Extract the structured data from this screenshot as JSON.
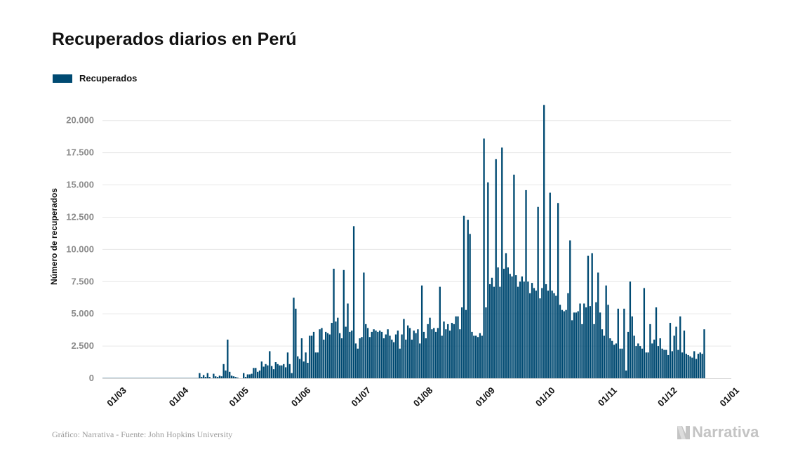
{
  "title": "Recuperados diarios en Perú",
  "footer": "Gráfico: Narrativa - Fuente: John Hopkins University",
  "brand": {
    "name": "Narrativa",
    "icon": "narrativa-logo-icon"
  },
  "colors": {
    "bar": "#004a72",
    "grid": "#e6e6e6",
    "tick_text": "#8a8a8a",
    "label": "#111111",
    "brand": "#c4c4c4"
  },
  "chart_data": {
    "type": "bar",
    "title": "Recuperados diarios en Perú",
    "xlabel": "",
    "ylabel": "Número de recuperados",
    "ylim": [
      0,
      22000
    ],
    "yticks": [
      0,
      2500,
      5000,
      7500,
      10000,
      12500,
      15000,
      17500,
      20000
    ],
    "ytick_labels": [
      "0",
      "2.500",
      "5.000",
      "7.500",
      "10.000",
      "12.500",
      "15.000",
      "17.500",
      "20.000"
    ],
    "xticks": [
      "2020-03-01",
      "2020-04-01",
      "2020-05-01",
      "2020-06-01",
      "2020-07-01",
      "2020-08-01",
      "2020-09-01",
      "2020-10-01",
      "2020-11-01",
      "2020-12-01",
      "2021-01-01"
    ],
    "xtick_labels": [
      "01/03",
      "01/04",
      "01/05",
      "01/06",
      "01/07",
      "01/08",
      "01/09",
      "01/10",
      "01/11",
      "01/12",
      "01/01"
    ],
    "xlim": [
      "2020-02-22",
      "2021-01-01"
    ],
    "grid": true,
    "legend_position": "top-left",
    "series": [
      {
        "name": "Recuperados",
        "start_date": "2020-02-22",
        "values": [
          0,
          0,
          0,
          0,
          0,
          0,
          0,
          0,
          0,
          0,
          0,
          0,
          0,
          0,
          0,
          0,
          0,
          0,
          0,
          0,
          0,
          0,
          0,
          0,
          0,
          0,
          0,
          0,
          0,
          0,
          0,
          0,
          0,
          0,
          0,
          0,
          0,
          0,
          0,
          0,
          0,
          0,
          0,
          0,
          0,
          0,
          0,
          0,
          400,
          100,
          250,
          100,
          400,
          100,
          0,
          350,
          150,
          100,
          200,
          150,
          1100,
          600,
          3000,
          500,
          200,
          150,
          100,
          50,
          0,
          0,
          400,
          100,
          300,
          300,
          350,
          800,
          800,
          500,
          600,
          1300,
          900,
          1100,
          1000,
          2100,
          950,
          700,
          1250,
          1100,
          1000,
          1000,
          1100,
          850,
          2000,
          1100,
          400,
          6250,
          5400,
          1700,
          1500,
          3100,
          1300,
          2000,
          1200,
          3300,
          3300,
          3600,
          2000,
          2000,
          3800,
          3900,
          3000,
          3600,
          3500,
          3400,
          4300,
          8500,
          4400,
          4700,
          3500,
          3100,
          8400,
          4000,
          5800,
          3600,
          3700,
          11800,
          2700,
          2300,
          3100,
          3200,
          8200,
          4200,
          3900,
          3200,
          3600,
          3800,
          3700,
          3600,
          3700,
          3600,
          3100,
          3400,
          3800,
          3300,
          3000,
          2800,
          3400,
          3700,
          2300,
          3400,
          4600,
          3000,
          4100,
          3900,
          3000,
          3700,
          3500,
          3800,
          2700,
          7200,
          3600,
          3100,
          4200,
          4700,
          3800,
          3900,
          3600,
          3900,
          7100,
          3300,
          4400,
          3800,
          4200,
          3700,
          4300,
          4200,
          4800,
          4800,
          3800,
          5500,
          12600,
          5300,
          12300,
          11200,
          3600,
          3300,
          3300,
          3200,
          3500,
          3300,
          18600,
          5500,
          15200,
          7300,
          7800,
          7100,
          17000,
          8600,
          7100,
          17900,
          8500,
          9700,
          8600,
          8100,
          7900,
          15800,
          8000,
          7100,
          7500,
          7900,
          7500,
          14600,
          7500,
          6600,
          7400,
          7000,
          6800,
          13300,
          6200,
          7000,
          21200,
          7300,
          6800,
          14400,
          6800,
          6600,
          6400,
          13600,
          5700,
          5300,
          5200,
          5300,
          6600,
          10700,
          4500,
          5100,
          5100,
          5200,
          5800,
          4200,
          5800,
          5500,
          9500,
          5600,
          9700,
          4200,
          5900,
          8200,
          5100,
          3800,
          3300,
          7200,
          5700,
          3100,
          2900,
          2600,
          2700,
          5400,
          2300,
          2300,
          5400,
          600,
          3600,
          7500,
          4800,
          3300,
          2500,
          2700,
          2500,
          2300,
          7000,
          2000,
          2000,
          4200,
          2700,
          3000,
          5500,
          2500,
          3100,
          2300,
          2200,
          2200,
          1800,
          4300,
          2100,
          3300,
          4000,
          2200,
          4800,
          2000,
          3700,
          1900,
          1800,
          1700,
          1600,
          2100,
          1500,
          1900,
          2000,
          1900,
          3800
        ]
      }
    ]
  }
}
